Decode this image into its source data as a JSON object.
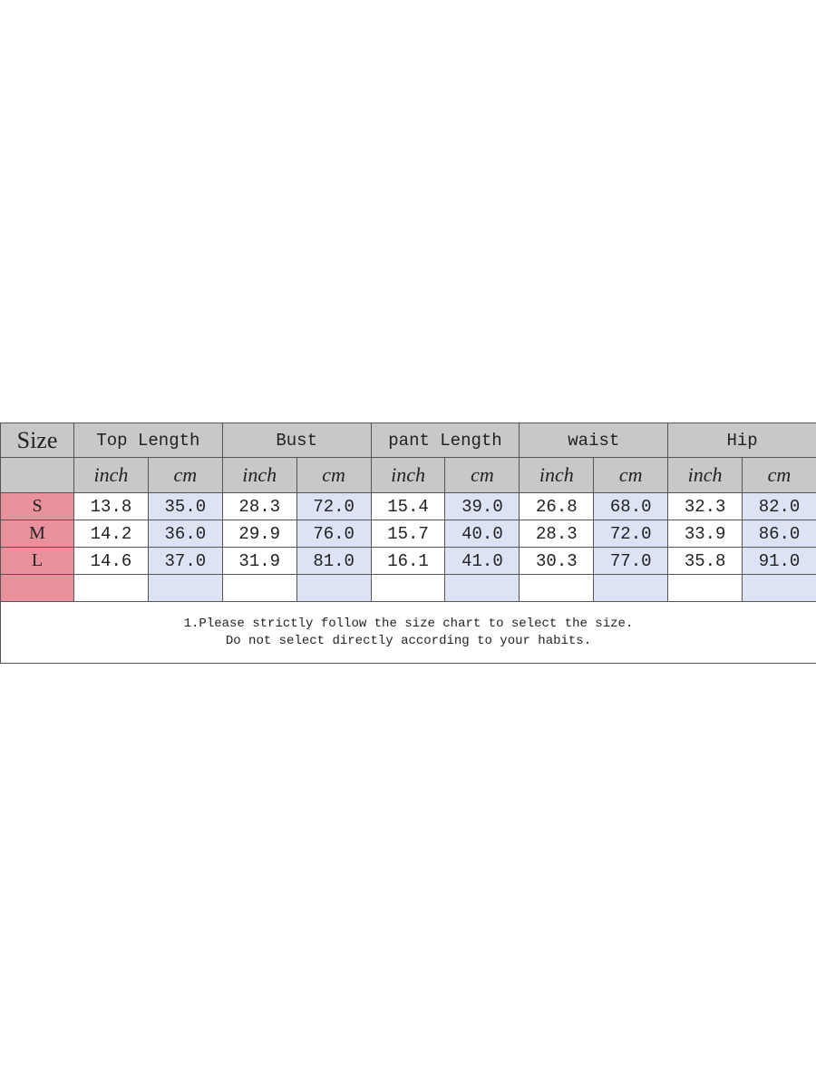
{
  "header": {
    "size_label": "Size",
    "columns": [
      "Top Length",
      "Bust",
      "pant Length",
      "waist",
      "Hip"
    ]
  },
  "units": [
    "inch",
    "cm",
    "inch",
    "cm",
    "inch",
    "cm",
    "inch",
    "cm",
    "inch",
    "cm"
  ],
  "rows": [
    {
      "size": "S",
      "values": [
        "13.8",
        "35.0",
        "28.3",
        "72.0",
        "15.4",
        "39.0",
        "26.8",
        "68.0",
        "32.3",
        "82.0"
      ]
    },
    {
      "size": "M",
      "values": [
        "14.2",
        "36.0",
        "29.9",
        "76.0",
        "15.7",
        "40.0",
        "28.3",
        "72.0",
        "33.9",
        "86.0"
      ]
    },
    {
      "size": "L",
      "values": [
        "14.6",
        "37.0",
        "31.9",
        "81.0",
        "16.1",
        "41.0",
        "30.3",
        "77.0",
        "35.8",
        "91.0"
      ]
    }
  ],
  "note": [
    "1.Please strictly follow the size chart to select the size.",
    "Do not select directly according to your habits."
  ]
}
